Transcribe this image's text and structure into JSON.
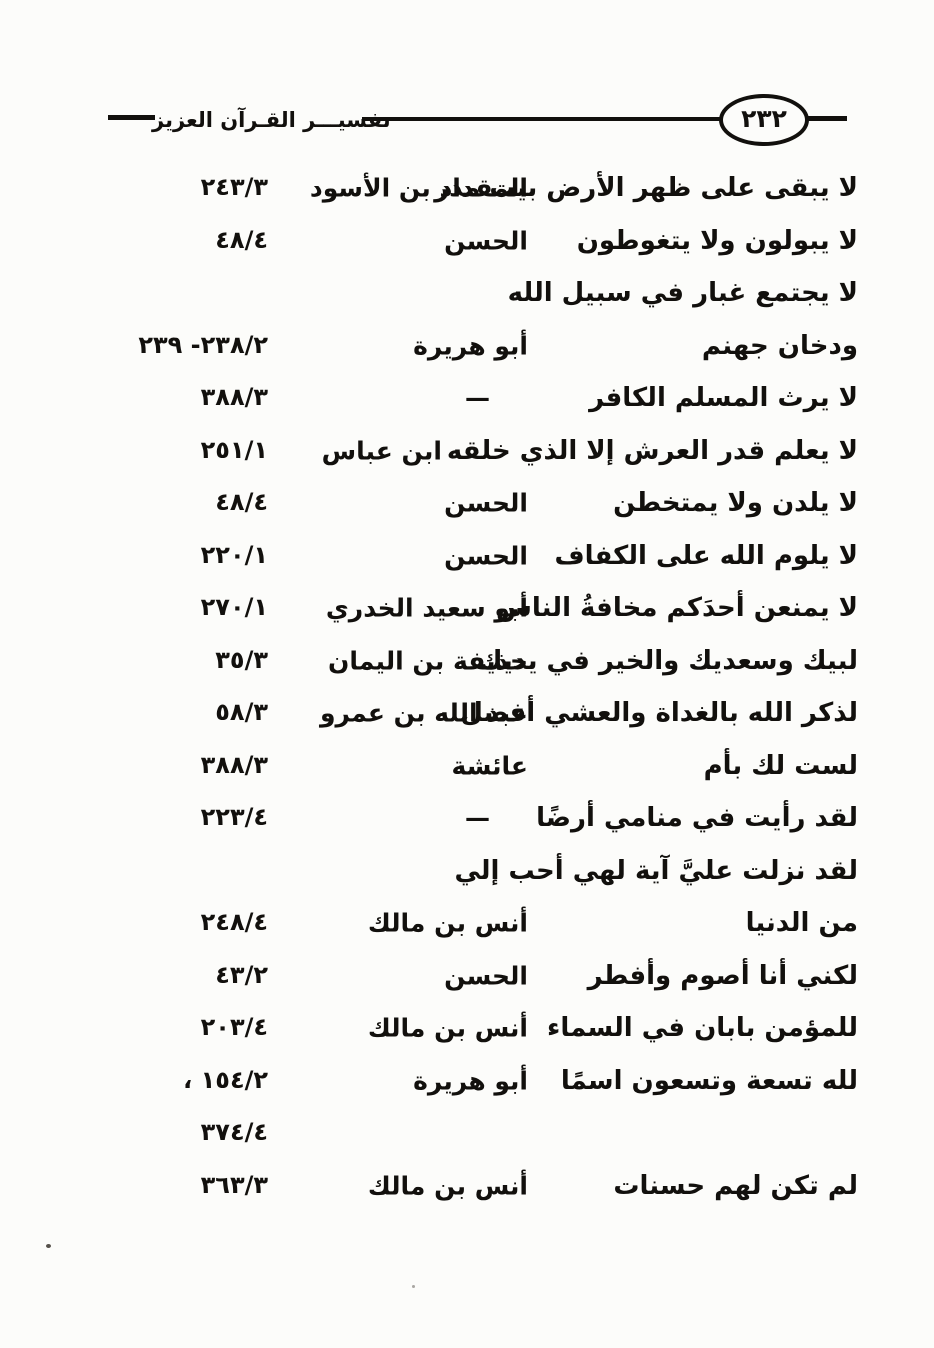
{
  "header": {
    "book_title": "تفسيـــر القـرآن العزيز",
    "page_number": "٢٣٢"
  },
  "index": {
    "rows": [
      {
        "text": "لا يبقى على ظهر الأرض بيت مدر",
        "narrator": "المقداد بن الأسود",
        "ref": "٢٤٣/٣"
      },
      {
        "text": "لا يبولون ولا يتغوطون",
        "narrator": "الحسن",
        "ref": "٤٨/٤"
      },
      {
        "text": "لا يجتمع غبار في سبيل الله",
        "narrator": "",
        "ref": ""
      },
      {
        "text": "ودخان جهنم",
        "narrator": "أبو هريرة",
        "ref": "٢٣٨/٢- ٢٣٩"
      },
      {
        "text": "لا يرث المسلم الكافر",
        "narrator": "—",
        "ref": "٣٨٨/٣"
      },
      {
        "text": "لا يعلم قدر العرش إلا الذي خلقه",
        "narrator": "ابن عباس",
        "ref": "٢٥١/١"
      },
      {
        "text": "لا يلدن ولا يمتخطن",
        "narrator": "الحسن",
        "ref": "٤٨/٤"
      },
      {
        "text": "لا يلوم الله على الكفاف",
        "narrator": "الحسن",
        "ref": "٢٢٠/١"
      },
      {
        "text": "لا يمنعن أحدَكم مخافةُ الناس",
        "narrator": "أبو سعيد الخدري",
        "ref": "٢٧٠/١"
      },
      {
        "text": "لبيك وسعديك والخير في يديك",
        "narrator": "حذيفة بن اليمان",
        "ref": "٣٥/٣"
      },
      {
        "text": "لذكر الله بالغداة والعشي أفضل",
        "narrator": "عبد الله بن عمرو",
        "ref": "٥٨/٣"
      },
      {
        "text": "لست لك بأم",
        "narrator": "عائشة",
        "ref": "٣٨٨/٣"
      },
      {
        "text": "لقد رأيت في منامي أرضًا",
        "narrator": "—",
        "ref": "٢٢٣/٤"
      },
      {
        "text": "لقد نزلت عليَّ آية لهي أحب إلي",
        "narrator": "",
        "ref": ""
      },
      {
        "text": "من الدنيا",
        "narrator": "أنس بن مالك",
        "ref": "٢٤٨/٤"
      },
      {
        "text": "لكني أنا أصوم وأفطر",
        "narrator": "الحسن",
        "ref": "٤٣/٢"
      },
      {
        "text": "للمؤمن بابان في السماء",
        "narrator": "أنس بن مالك",
        "ref": "٢٠٣/٤"
      },
      {
        "text": "لله تسعة وتسعون اسمًا",
        "narrator": "أبو هريرة",
        "ref": "١٥٤/٢ ،"
      },
      {
        "text": "",
        "narrator": "",
        "ref": "٣٧٤/٤"
      },
      {
        "text": "لم تكن لهم حسنات",
        "narrator": "أنس بن مالك",
        "ref": "٣٦٣/٣"
      }
    ]
  }
}
